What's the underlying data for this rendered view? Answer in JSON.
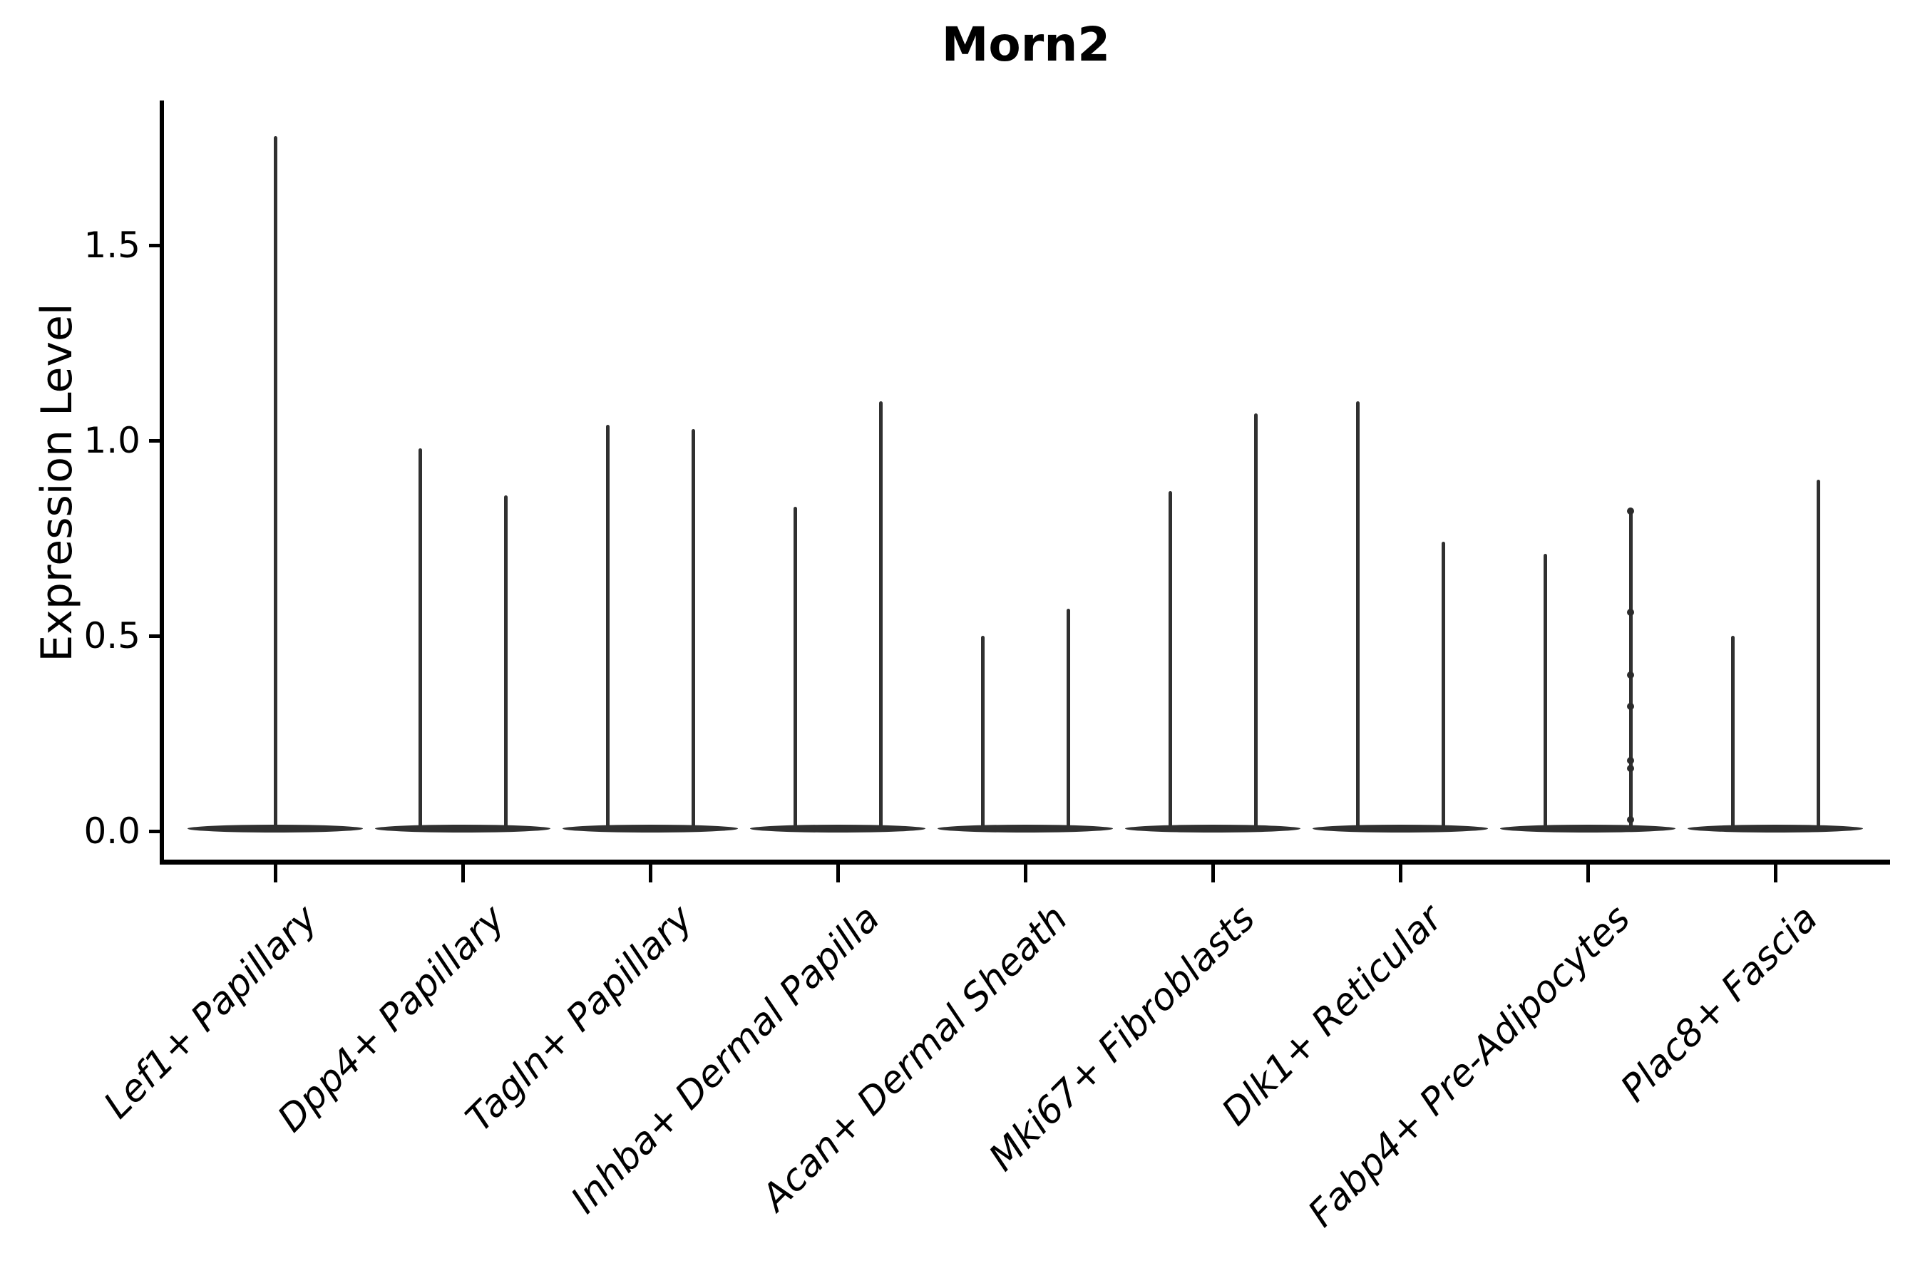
{
  "chart_data": {
    "type": "violin",
    "title": "Morn2",
    "ylabel": "Expression Level",
    "xlabel": "",
    "yticks": [
      "0.0",
      "0.5",
      "1.0",
      "1.5"
    ],
    "ylim": [
      -0.08,
      1.87
    ],
    "grid": false,
    "legend": null,
    "categories": [
      "Lef1+ Papillary",
      "Dpp4+ Papillary",
      "Tagln+ Papillary",
      "Inhba+ Dermal Papilla",
      "Acan+ Dermal Sheath",
      "Mki67+ Fibroblasts",
      "Dlk1+ Reticular",
      "Fabp4+ Pre-Adipocytes",
      "Plac8+ Fascia"
    ],
    "violin_shape_note": "Every violin is a wide flat bulge at expression 0 with a single thin vertical spike rising to its maximum expression value; Lef1+ Papillary shows one full-width violin, all other categories show two side-by-side violins",
    "series": [
      {
        "name": "left-violin",
        "max_values": [
          1.78,
          0.98,
          1.04,
          0.83,
          0.5,
          0.87,
          1.1,
          0.71,
          0.5
        ]
      },
      {
        "name": "right-violin",
        "max_values": [
          null,
          0.86,
          1.03,
          1.1,
          0.57,
          1.07,
          0.74,
          0.82,
          0.9
        ]
      }
    ],
    "jitter_points": {
      "category_index": 7,
      "violin": 2,
      "values": [
        0.82,
        0.56,
        0.4,
        0.32,
        0.18,
        0.16,
        0.03
      ]
    },
    "colors": {
      "violin": "#303030",
      "axis": "#000000",
      "text": "#000000",
      "background": "#ffffff"
    }
  }
}
